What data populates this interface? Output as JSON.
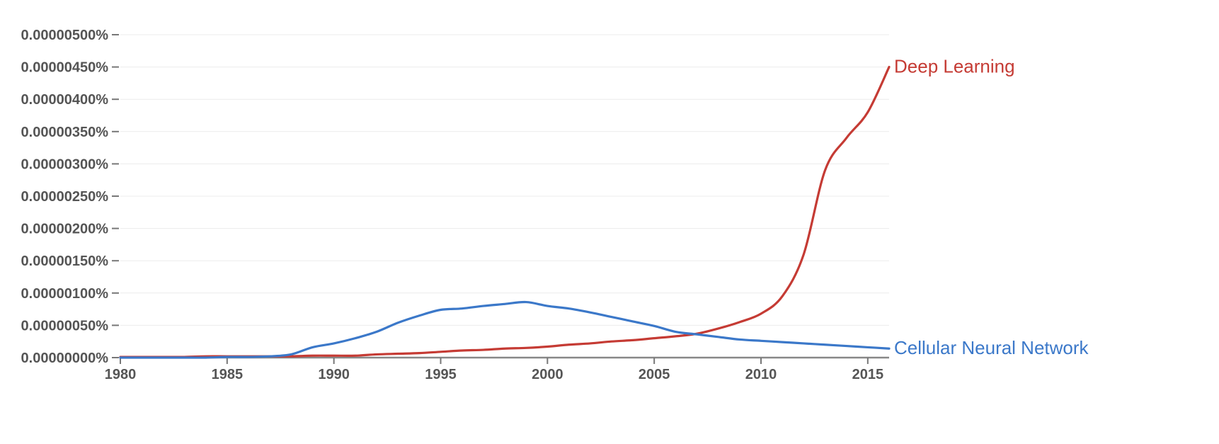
{
  "chart_data": {
    "type": "line",
    "title": "",
    "xlabel": "",
    "ylabel": "",
    "xlim": [
      1980,
      2016
    ],
    "ylim": [
      0,
      5e-06
    ],
    "grid": true,
    "legend": "inline labels at right end of each line",
    "x_ticks": [
      1980,
      1985,
      1990,
      1995,
      2000,
      2005,
      2010,
      2015
    ],
    "x_tick_labels": [
      "1980",
      "1985",
      "1990",
      "1995",
      "2000",
      "2005",
      "2010",
      "2015"
    ],
    "y_ticks": [
      0,
      5e-07,
      1e-06,
      1.5e-06,
      2e-06,
      2.5e-06,
      3e-06,
      3.5e-06,
      4e-06,
      4.5e-06,
      5e-06
    ],
    "y_tick_labels": [
      "0.00000000%",
      "0.00000050%",
      "0.00000100%",
      "0.00000150%",
      "0.00000200%",
      "0.00000250%",
      "0.00000300%",
      "0.00000350%",
      "0.00000400%",
      "0.00000450%",
      "0.00000500%"
    ],
    "x": [
      1980,
      1981,
      1982,
      1983,
      1984,
      1985,
      1986,
      1987,
      1988,
      1989,
      1990,
      1991,
      1992,
      1993,
      1994,
      1995,
      1996,
      1997,
      1998,
      1999,
      2000,
      2001,
      2002,
      2003,
      2004,
      2005,
      2006,
      2007,
      2008,
      2009,
      2010,
      2011,
      2012,
      2013,
      2014,
      2015,
      2016
    ],
    "series": [
      {
        "name": "Deep Learning",
        "color": "#c53b34",
        "values": [
          1e-08,
          1e-08,
          1e-08,
          1e-08,
          2e-08,
          2e-08,
          2e-08,
          2e-08,
          2e-08,
          3e-08,
          3e-08,
          3e-08,
          5e-08,
          6e-08,
          7e-08,
          9e-08,
          1.1e-07,
          1.2e-07,
          1.4e-07,
          1.5e-07,
          1.7e-07,
          2e-07,
          2.2e-07,
          2.5e-07,
          2.7e-07,
          3e-07,
          3.3e-07,
          3.7e-07,
          4.5e-07,
          5.5e-07,
          6.8e-07,
          9.5e-07,
          1.6e-06,
          2.9e-06,
          3.4e-06,
          3.8e-06,
          4.5e-06
        ]
      },
      {
        "name": "Cellular Neural Network",
        "color": "#3b78c9",
        "values": [
          0,
          0,
          0,
          0,
          0,
          1e-08,
          1e-08,
          2e-08,
          5e-08,
          1.6e-07,
          2.2e-07,
          3e-07,
          4e-07,
          5.4e-07,
          6.5e-07,
          7.4e-07,
          7.6e-07,
          8e-07,
          8.3e-07,
          8.6e-07,
          8e-07,
          7.6e-07,
          7e-07,
          6.3e-07,
          5.6e-07,
          4.9e-07,
          4e-07,
          3.6e-07,
          3.2e-07,
          2.8e-07,
          2.6e-07,
          2.4e-07,
          2.2e-07,
          2e-07,
          1.8e-07,
          1.6e-07,
          1.4e-07
        ]
      }
    ]
  }
}
